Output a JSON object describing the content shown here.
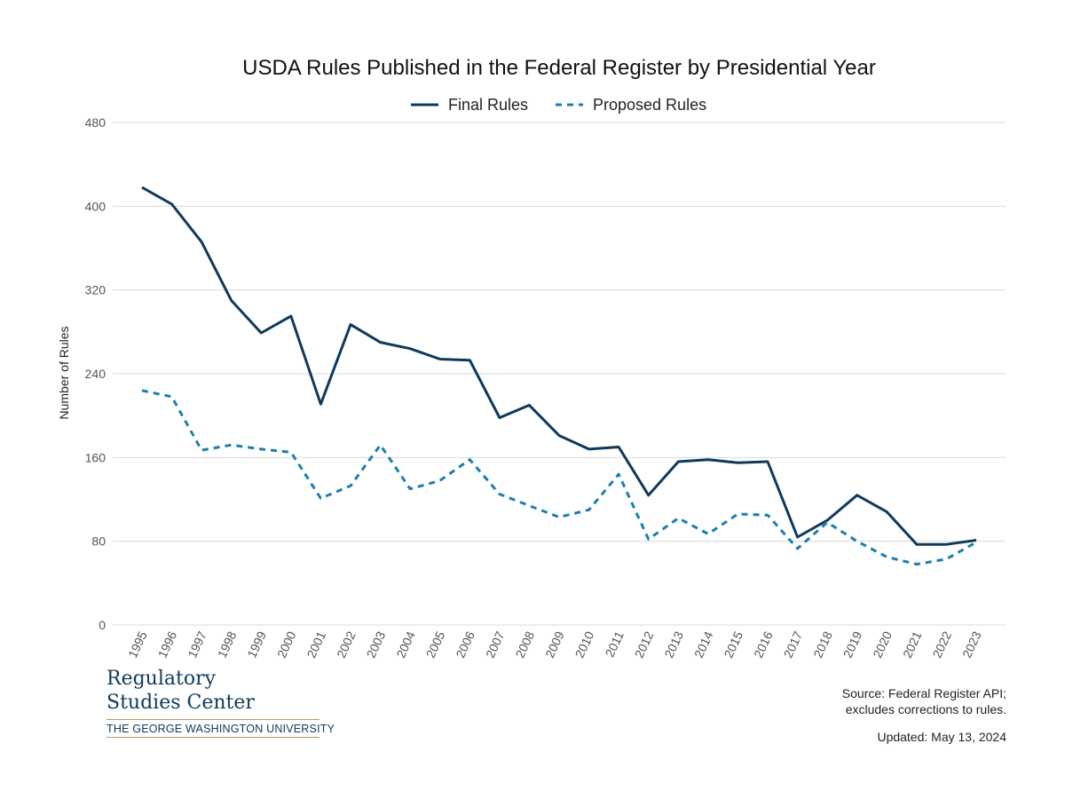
{
  "chart_data": {
    "type": "line",
    "title": "USDA Rules Published in the Federal Register by Presidential Year",
    "ylabel": "Number of Rules",
    "xlabel": "",
    "ylim": [
      0,
      480
    ],
    "yticks": [
      0,
      80,
      160,
      240,
      320,
      400,
      480
    ],
    "grid": true,
    "legend_position": "top-center",
    "x": [
      "1995",
      "1996",
      "1997",
      "1998",
      "1999",
      "2000",
      "2001",
      "2002",
      "2003",
      "2004",
      "2005",
      "2006",
      "2007",
      "2008",
      "2009",
      "2010",
      "2011",
      "2012",
      "2013",
      "2014",
      "2015",
      "2016",
      "2017",
      "2018",
      "2019",
      "2020",
      "2021",
      "2022",
      "2023"
    ],
    "series": [
      {
        "name": "Final Rules",
        "style": "solid",
        "color": "#0d3a5c",
        "values": [
          418,
          402,
          366,
          310,
          279,
          295,
          211,
          287,
          270,
          264,
          254,
          253,
          198,
          210,
          181,
          168,
          170,
          124,
          156,
          158,
          155,
          156,
          84,
          100,
          124,
          108,
          77,
          77,
          81
        ]
      },
      {
        "name": "Proposed Rules",
        "style": "dashed",
        "color": "#1b7fb0",
        "values": [
          224,
          218,
          167,
          172,
          168,
          165,
          121,
          133,
          172,
          130,
          138,
          158,
          125,
          114,
          103,
          110,
          144,
          82,
          102,
          87,
          106,
          105,
          73,
          98,
          80,
          65,
          58,
          63,
          79
        ]
      }
    ]
  },
  "footer": {
    "org_line1": "Regulatory",
    "org_line2": "Studies Center",
    "university": "THE GEORGE WASHINGTON UNIVERSITY",
    "source_line1": "Source: Federal Register API;",
    "source_line2": "excludes corrections to rules.",
    "updated": "Updated: May 13, 2024"
  }
}
